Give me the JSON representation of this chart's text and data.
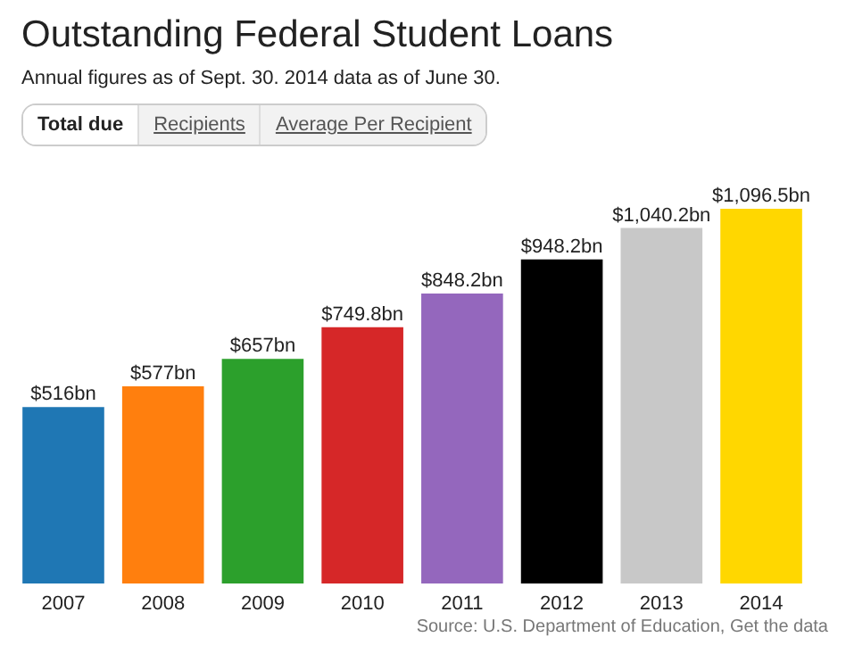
{
  "chart_data": {
    "type": "bar",
    "title": "Outstanding Federal Student Loans",
    "subtitle": "Annual figures as of Sept. 30. 2014 data as of June 30.",
    "categories": [
      "2007",
      "2008",
      "2009",
      "2010",
      "2011",
      "2012",
      "2013",
      "2014"
    ],
    "values": [
      516,
      577,
      657,
      749.8,
      848.2,
      948.2,
      1040.2,
      1096.5
    ],
    "value_labels": [
      "$516bn",
      "$577bn",
      "$657bn",
      "$749.8bn",
      "$848.2bn",
      "$948.2bn",
      "$1,040.2bn",
      "$1,096.5bn"
    ],
    "colors": [
      "#1f77b4",
      "#ff7f0e",
      "#2ca02c",
      "#d62728",
      "#9467bd",
      "#000000",
      "#c8c8c8",
      "#ffd700"
    ],
    "annotations": [
      "Total due",
      "Recipients",
      "Average Per Recipient",
      "Source: U.S. Department of Education, Get the data"
    ],
    "grid": false
  }
}
